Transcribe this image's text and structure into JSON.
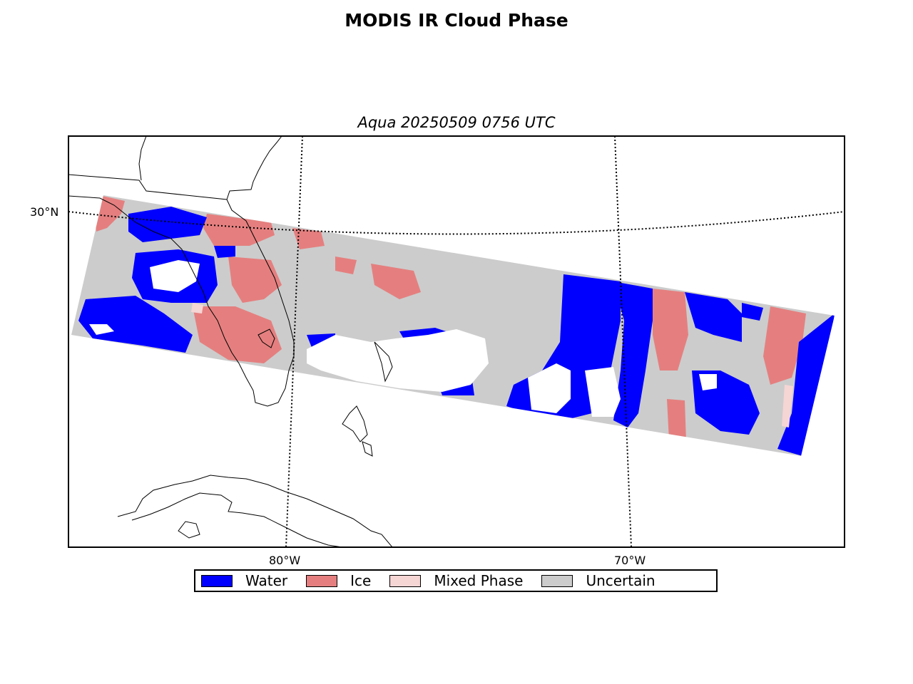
{
  "title": "MODIS IR Cloud Phase",
  "subtitle": "Aqua 20250509 0756 UTC",
  "axes": {
    "lat_labels": [
      "30°N"
    ],
    "lon_labels": [
      "80°W",
      "70°W"
    ]
  },
  "legend": {
    "items": [
      {
        "label": "Water",
        "color": "#0000ff"
      },
      {
        "label": "Ice",
        "color": "#e57f7f"
      },
      {
        "label": "Mixed Phase",
        "color": "#f6d5d5"
      },
      {
        "label": "Uncertain",
        "color": "#cccccc"
      }
    ]
  },
  "colors": {
    "water": "#0000ff",
    "ice": "#e57f7f",
    "mixed": "#f6d5d5",
    "uncertain": "#cccccc",
    "clear": "#ffffff",
    "coastline": "#000000"
  }
}
